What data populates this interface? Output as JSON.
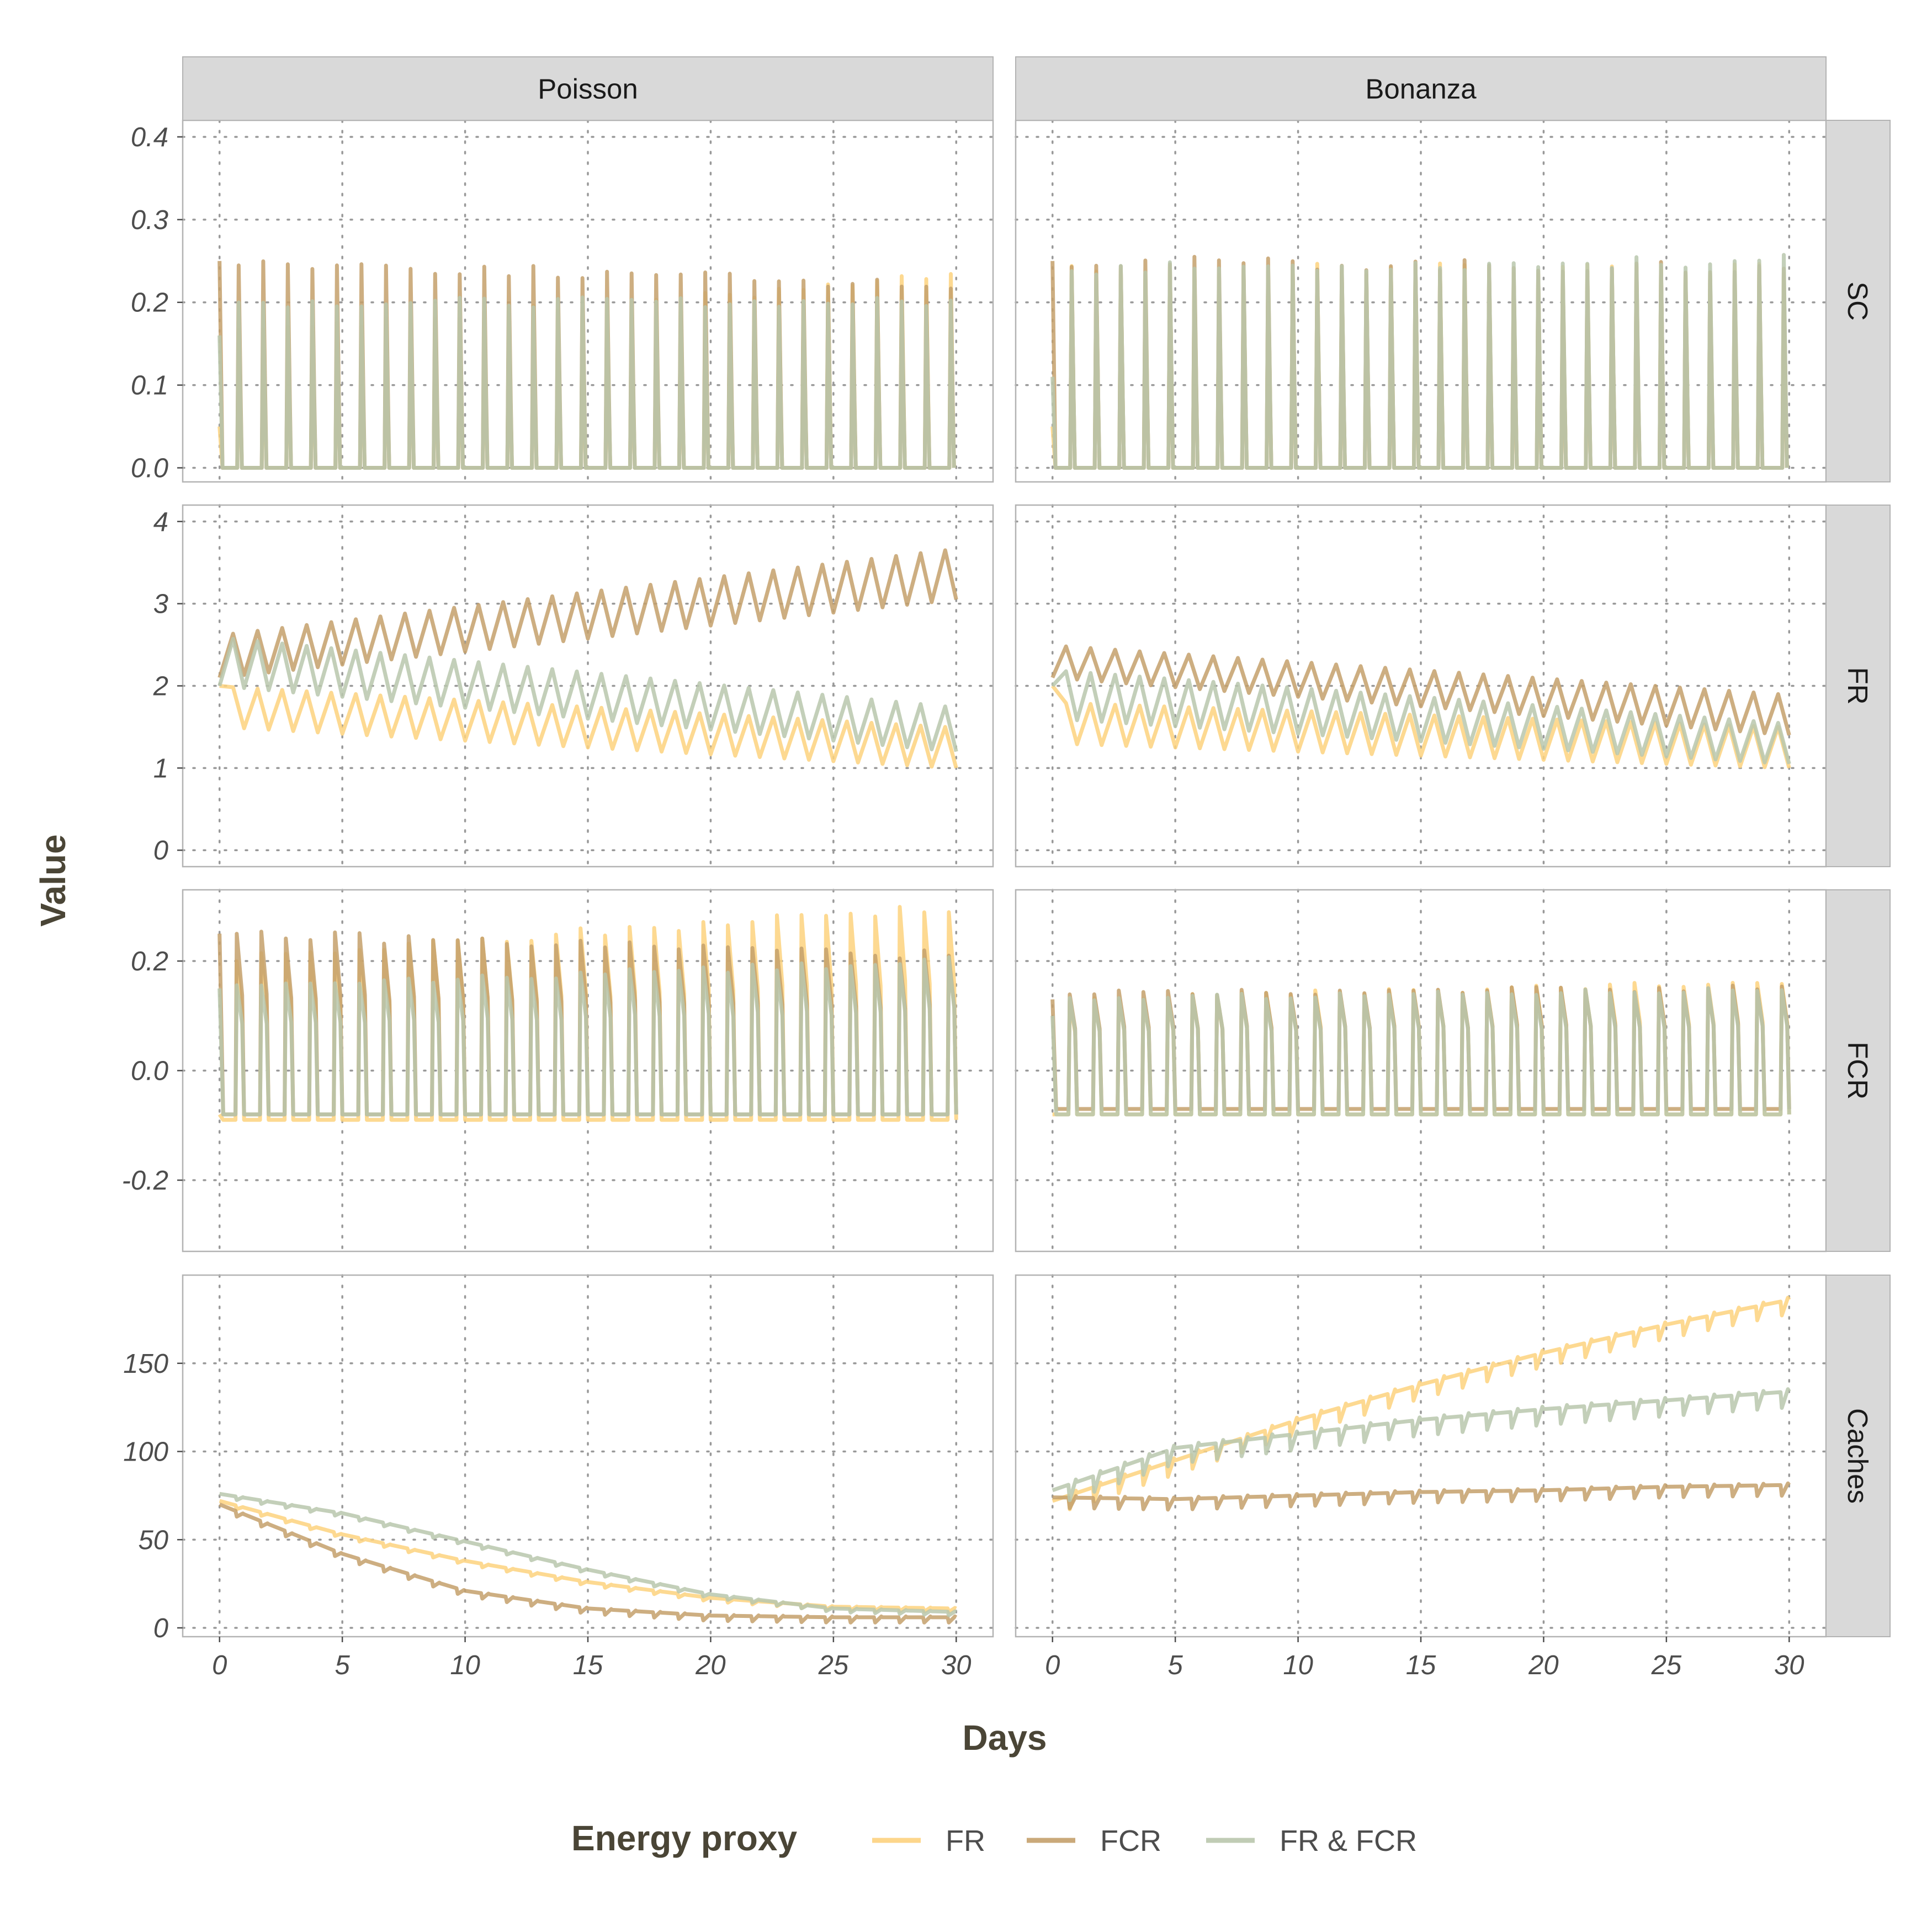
{
  "chart_data": {
    "type": "line",
    "xlabel": "Days",
    "ylabel": "Value",
    "columns": [
      "Poisson",
      "Bonanza"
    ],
    "rows": [
      "SC",
      "FR",
      "FCR",
      "Caches"
    ],
    "x_ticks": [
      0,
      5,
      10,
      15,
      20,
      25,
      30
    ],
    "xlim": [
      -1.5,
      31.5
    ],
    "grid": "dotted",
    "legend": {
      "title": "Energy proxy",
      "position": "bottom",
      "entries": [
        {
          "name": "FR",
          "color": "#fdd27e"
        },
        {
          "name": "FCR",
          "color": "#c4a06b"
        },
        {
          "name": "FR & FCR",
          "color": "#b9c7ad"
        }
      ]
    },
    "panels": {
      "SC": {
        "ylim": [
          -0.017,
          0.42
        ],
        "y_ticks": [
          0.0,
          0.1,
          0.2,
          0.3,
          0.4
        ],
        "y_tick_labels": [
          "0.0",
          "0.1",
          "0.2",
          "0.3",
          "0.4"
        ],
        "Poisson": [
          {
            "series": "FR",
            "pattern": "spikes",
            "start": 0.05,
            "peaks": [
              0.16,
              0.23
            ]
          },
          {
            "series": "FCR",
            "pattern": "spikes",
            "start": 0.25,
            "peaks": [
              0.25,
              0.22
            ]
          },
          {
            "series": "FR & FCR",
            "pattern": "spikes",
            "start": 0.16,
            "peaks": [
              0.2,
              0.2
            ]
          }
        ],
        "Bonanza": [
          {
            "series": "FR",
            "pattern": "spikes",
            "start": 0.05,
            "peaks": [
              0.24,
              0.24
            ]
          },
          {
            "series": "FCR",
            "pattern": "spikes",
            "start": 0.25,
            "peaks": [
              0.25,
              0.24
            ]
          },
          {
            "series": "FR & FCR",
            "pattern": "spikes",
            "start": 0.11,
            "peaks": [
              0.24,
              0.25
            ]
          }
        ]
      },
      "FR": {
        "ylim": [
          -0.2,
          4.2
        ],
        "y_ticks": [
          0,
          1,
          2,
          3,
          4
        ],
        "y_tick_labels": [
          "0",
          "1",
          "2",
          "3",
          "4"
        ],
        "Poisson": [
          {
            "series": "FR",
            "pattern": "sawtooth",
            "start": 2.0,
            "low": [
              1.5,
              1.0
            ],
            "high": [
              2.0,
              1.5
            ]
          },
          {
            "series": "FCR",
            "pattern": "sawtooth",
            "start": 2.1,
            "low": [
              2.1,
              3.05
            ],
            "high": [
              2.6,
              3.65
            ]
          },
          {
            "series": "FR & FCR",
            "pattern": "sawtooth",
            "start": 2.0,
            "low": [
              2.0,
              1.2
            ],
            "high": [
              2.6,
              1.75
            ]
          }
        ],
        "Bonanza": [
          {
            "series": "FR",
            "pattern": "sawtooth",
            "start": 2.0,
            "low": [
              1.3,
              1.0
            ],
            "high": [
              1.8,
              1.5
            ]
          },
          {
            "series": "FCR",
            "pattern": "sawtooth",
            "start": 2.1,
            "low": [
              2.1,
              1.4
            ],
            "high": [
              2.5,
              1.9
            ]
          },
          {
            "series": "FR & FCR",
            "pattern": "sawtooth",
            "start": 2.0,
            "low": [
              1.6,
              1.05
            ],
            "high": [
              2.2,
              1.55
            ]
          }
        ]
      },
      "FCR": {
        "ylim": [
          -0.33,
          0.33
        ],
        "y_ticks": [
          -0.2,
          0.0,
          0.2
        ],
        "y_tick_labels": [
          "-0.2",
          "0.0",
          "0.2"
        ],
        "Poisson": [
          {
            "series": "FR",
            "pattern": "pulses",
            "start": -0.08,
            "base": -0.09,
            "peaks": [
              0.2,
              0.3
            ]
          },
          {
            "series": "FCR",
            "pattern": "pulses",
            "start": 0.25,
            "base": -0.08,
            "peaks": [
              0.25,
              0.21
            ]
          },
          {
            "series": "FR & FCR",
            "pattern": "pulses",
            "start": 0.15,
            "base": -0.08,
            "peaks": [
              0.15,
              0.2
            ]
          }
        ],
        "Bonanza": [
          {
            "series": "FR",
            "pattern": "pulses",
            "start": -0.08,
            "base": -0.08,
            "peaks": [
              0.13,
              0.16
            ]
          },
          {
            "series": "FCR",
            "pattern": "pulses",
            "start": 0.13,
            "base": -0.07,
            "peaks": [
              0.14,
              0.15
            ]
          },
          {
            "series": "FR & FCR",
            "pattern": "pulses",
            "start": 0.1,
            "base": -0.08,
            "peaks": [
              0.13,
              0.15
            ]
          }
        ]
      },
      "Caches": {
        "ylim": [
          -5,
          200
        ],
        "y_ticks": [
          0,
          50,
          100,
          150
        ],
        "y_tick_labels": [
          "0",
          "50",
          "100",
          "150"
        ],
        "Poisson": [
          {
            "series": "FR",
            "pattern": "trend",
            "points": [
              [
                0,
                72
              ],
              [
                5,
                53
              ],
              [
                10,
                38
              ],
              [
                15,
                26
              ],
              [
                20,
                17
              ],
              [
                25,
                12
              ],
              [
                30,
                11
              ]
            ],
            "dip": 2
          },
          {
            "series": "FCR",
            "pattern": "trend",
            "points": [
              [
                0,
                70
              ],
              [
                5,
                42
              ],
              [
                10,
                21
              ],
              [
                15,
                11
              ],
              [
                20,
                7
              ],
              [
                25,
                6
              ],
              [
                30,
                6
              ]
            ],
            "dip": 3
          },
          {
            "series": "FR & FCR",
            "pattern": "trend",
            "points": [
              [
                0,
                76
              ],
              [
                5,
                65
              ],
              [
                10,
                49
              ],
              [
                15,
                33
              ],
              [
                20,
                19
              ],
              [
                25,
                11
              ],
              [
                30,
                9
              ]
            ],
            "dip": 2
          }
        ],
        "Bonanza": [
          {
            "series": "FR",
            "pattern": "trend",
            "points": [
              [
                0,
                72
              ],
              [
                5,
                95
              ],
              [
                10,
                118
              ],
              [
                15,
                138
              ],
              [
                20,
                156
              ],
              [
                25,
                172
              ],
              [
                30,
                186
              ]
            ],
            "dip": 8
          },
          {
            "series": "FCR",
            "pattern": "trend",
            "points": [
              [
                0,
                74
              ],
              [
                5,
                73
              ],
              [
                10,
                75
              ],
              [
                15,
                77
              ],
              [
                20,
                78
              ],
              [
                25,
                80
              ],
              [
                30,
                81
              ]
            ],
            "dip": 6
          },
          {
            "series": "FR & FCR",
            "pattern": "trend",
            "points": [
              [
                0,
                78
              ],
              [
                5,
                102
              ],
              [
                10,
                110
              ],
              [
                15,
                118
              ],
              [
                20,
                124
              ],
              [
                25,
                129
              ],
              [
                30,
                134
              ]
            ],
            "dip": 9
          }
        ]
      }
    }
  }
}
